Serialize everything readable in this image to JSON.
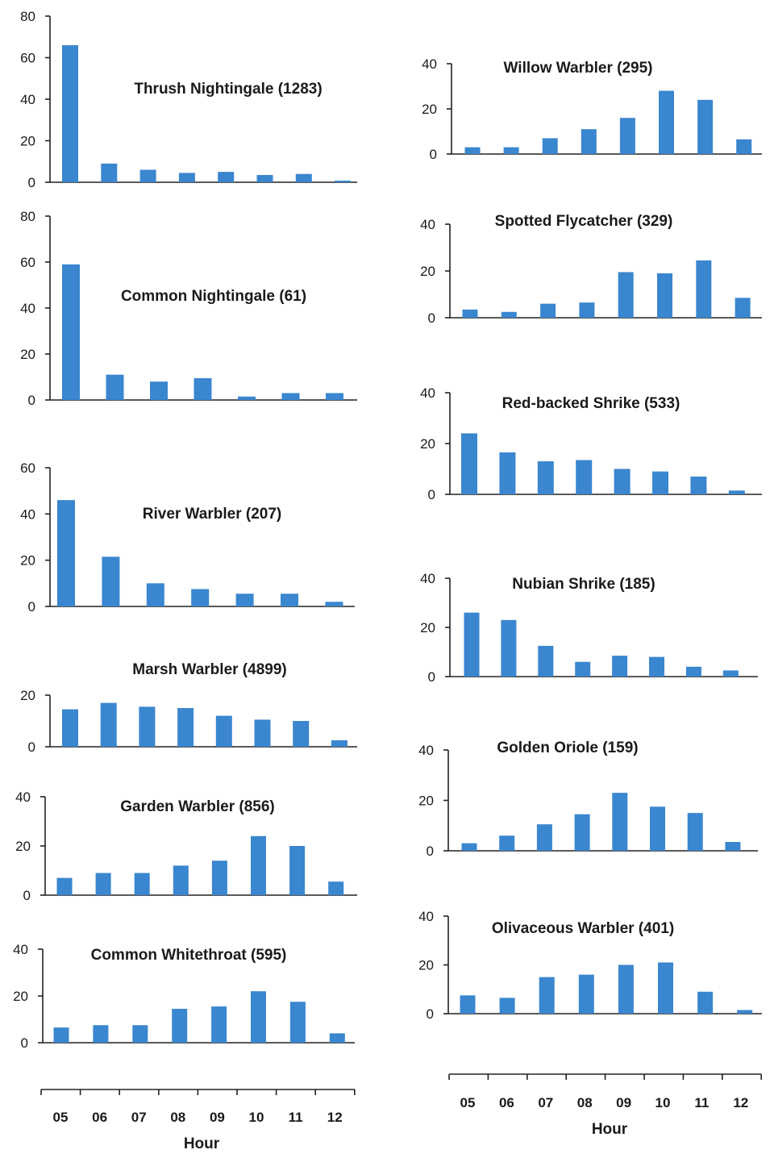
{
  "chart_data": [
    {
      "type": "bar",
      "title": "Thrush Nightingale  (1283)",
      "categories": [
        "05",
        "06",
        "07",
        "08",
        "09",
        "10",
        "11",
        "12"
      ],
      "values": [
        66,
        9,
        6,
        4.5,
        5,
        3.5,
        4,
        0.8
      ],
      "ylim": [
        0,
        80
      ],
      "yticks": [
        0,
        20,
        40,
        60,
        80
      ],
      "color": "#3a86cf"
    },
    {
      "type": "bar",
      "title": "Common Nightingale (61)",
      "categories": [
        "05",
        "06",
        "07",
        "08",
        "09",
        "10",
        "11",
        "12"
      ],
      "values": [
        59,
        11,
        8,
        9.5,
        1.5,
        3,
        3,
        0
      ],
      "ylim": [
        0,
        80
      ],
      "yticks": [
        0,
        20,
        40,
        60,
        80
      ],
      "color": "#3a86cf"
    },
    {
      "type": "bar",
      "title": "River Warbler (207)",
      "categories": [
        "05",
        "06",
        "07",
        "08",
        "09",
        "10",
        "11",
        "12"
      ],
      "values": [
        46,
        21.5,
        10,
        7.5,
        5.5,
        5.5,
        2,
        0
      ],
      "ylim": [
        0,
        60
      ],
      "yticks": [
        0,
        20,
        40,
        60
      ],
      "color": "#3a86cf"
    },
    {
      "type": "bar",
      "title": "Marsh Warbler (4899)",
      "categories": [
        "05",
        "06",
        "07",
        "08",
        "09",
        "10",
        "11",
        "12"
      ],
      "values": [
        14.5,
        17,
        15.5,
        15,
        12,
        10.5,
        10,
        2.5
      ],
      "ylim": [
        0,
        20
      ],
      "yticks": [
        0,
        20
      ],
      "color": "#3a86cf"
    },
    {
      "type": "bar",
      "title": "Garden Warbler (856)",
      "categories": [
        "05",
        "06",
        "07",
        "08",
        "09",
        "10",
        "11",
        "12"
      ],
      "values": [
        7,
        9,
        9,
        12,
        14,
        24,
        20,
        5.5
      ],
      "ylim": [
        0,
        40
      ],
      "yticks": [
        0,
        20,
        40
      ],
      "color": "#3a86cf"
    },
    {
      "type": "bar",
      "title": "Common Whitethroat (595)",
      "categories": [
        "05",
        "06",
        "07",
        "08",
        "09",
        "10",
        "11",
        "12"
      ],
      "values": [
        6.5,
        7.5,
        7.5,
        14.5,
        15.5,
        22,
        17.5,
        4
      ],
      "ylim": [
        0,
        40
      ],
      "yticks": [
        0,
        20,
        40
      ],
      "color": "#3a86cf"
    },
    {
      "type": "bar",
      "title": "Willow Warbler (295)",
      "categories": [
        "05",
        "06",
        "07",
        "08",
        "09",
        "10",
        "11",
        "12"
      ],
      "values": [
        3,
        3,
        7,
        11,
        16,
        28,
        24,
        6.5
      ],
      "ylim": [
        0,
        40
      ],
      "yticks": [
        0,
        20,
        40
      ],
      "color": "#3a86cf"
    },
    {
      "type": "bar",
      "title": "Spotted Flycatcher (329)",
      "categories": [
        "05",
        "06",
        "07",
        "08",
        "09",
        "10",
        "11",
        "12"
      ],
      "values": [
        3.5,
        2.5,
        6,
        6.5,
        19.5,
        19,
        24.5,
        8.5
      ],
      "ylim": [
        0,
        40
      ],
      "yticks": [
        0,
        20,
        40
      ],
      "color": "#3a86cf"
    },
    {
      "type": "bar",
      "title": "Red-backed Shrike (533)",
      "categories": [
        "05",
        "06",
        "07",
        "08",
        "09",
        "10",
        "11",
        "12"
      ],
      "values": [
        24,
        16.5,
        13,
        13.5,
        10,
        9,
        7,
        1.5
      ],
      "ylim": [
        0,
        40
      ],
      "yticks": [
        0,
        20,
        40
      ],
      "color": "#3a86cf"
    },
    {
      "type": "bar",
      "title": "Nubian Shrike (185)",
      "categories": [
        "05",
        "06",
        "07",
        "08",
        "09",
        "10",
        "11",
        "12"
      ],
      "values": [
        26,
        23,
        12.5,
        6,
        8.5,
        8,
        4,
        2.5
      ],
      "ylim": [
        0,
        40
      ],
      "yticks": [
        0,
        20,
        40
      ],
      "color": "#3a86cf"
    },
    {
      "type": "bar",
      "title": "Golden Oriole (159)",
      "categories": [
        "05",
        "06",
        "07",
        "08",
        "09",
        "10",
        "11",
        "12"
      ],
      "values": [
        3,
        6,
        10.5,
        14.5,
        23,
        17.5,
        15,
        3.5
      ],
      "ylim": [
        0,
        40
      ],
      "yticks": [
        0,
        20,
        40
      ],
      "color": "#3a86cf"
    },
    {
      "type": "bar",
      "title": "Olivaceous Warbler (401)",
      "categories": [
        "05",
        "06",
        "07",
        "08",
        "09",
        "10",
        "11",
        "12"
      ],
      "values": [
        7.5,
        6.5,
        15,
        16,
        20,
        21,
        9,
        1.5
      ],
      "ylim": [
        0,
        40
      ],
      "yticks": [
        0,
        20,
        40
      ],
      "color": "#3a86cf"
    }
  ],
  "x_axes": [
    {
      "categories": [
        "05",
        "06",
        "07",
        "08",
        "09",
        "10",
        "11",
        "12"
      ],
      "label": "Hour"
    },
    {
      "categories": [
        "05",
        "06",
        "07",
        "08",
        "09",
        "10",
        "11",
        "12"
      ],
      "label": "Hour"
    }
  ]
}
